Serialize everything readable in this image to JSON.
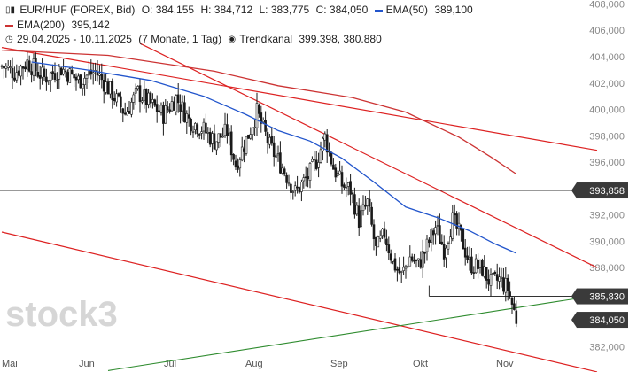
{
  "header": {
    "symbol": "EUR/HUF (FOREX, Bid)",
    "open": "O: 384,155",
    "high": "H: 384,712",
    "low": "L: 383,775",
    "close": "C: 384,050",
    "ema50_label": "EMA(50)",
    "ema50_value": "389,100",
    "ema200_label": "EMA(200)",
    "ema200_value": "395,142",
    "range": "29.04.2025 - 10.11.2025",
    "period": "(7 Monate, 1 Tag)",
    "channel_label": "Trendkanal",
    "channel_values": "399.398, 380.880"
  },
  "watermark": "stock3",
  "colors": {
    "candle": "#1a1a1a",
    "ema50": "#2255cc",
    "ema200": "#cc3333",
    "channel": "#dd2222",
    "support": "#2e8b2e",
    "level": "#333333",
    "label_bg": "#3a3a3a"
  },
  "chart_data": {
    "type": "candlestick",
    "x_axis": [
      "Mai",
      "Jun",
      "Jul",
      "Aug",
      "Sep",
      "Okt",
      "Nov"
    ],
    "y_ticks": [
      "382,000",
      "384,000",
      "386,000",
      "388,000",
      "390,000",
      "392,000",
      "394,000",
      "396,000",
      "398,000",
      "400,000",
      "402,000",
      "404,000",
      "406,000",
      "408,000"
    ],
    "ylim": [
      381.3,
      408.3
    ],
    "price_labels": [
      "393,858",
      "385,830",
      "384,050"
    ],
    "levels": [
      393.858,
      385.83
    ],
    "last_close": 384.05,
    "close_path": [
      [
        0,
        403.3
      ],
      [
        6,
        402.8
      ],
      [
        12,
        403.6
      ],
      [
        20,
        402.4
      ],
      [
        28,
        403.1
      ],
      [
        36,
        402.2
      ],
      [
        44,
        402.9
      ],
      [
        52,
        401.2
      ],
      [
        58,
        399.7
      ],
      [
        64,
        401.3
      ],
      [
        70,
        400.4
      ],
      [
        76,
        399.6
      ],
      [
        82,
        400.9
      ],
      [
        88,
        399.2
      ],
      [
        94,
        398.6
      ],
      [
        100,
        397.6
      ],
      [
        106,
        398.3
      ],
      [
        110,
        395.8
      ],
      [
        116,
        398.1
      ],
      [
        120,
        399.8
      ],
      [
        126,
        397.2
      ],
      [
        132,
        395.6
      ],
      [
        138,
        393.7
      ],
      [
        144,
        394.9
      ],
      [
        148,
        396.1
      ],
      [
        152,
        397.9
      ],
      [
        156,
        395.6
      ],
      [
        160,
        394.3
      ],
      [
        164,
        393.9
      ],
      [
        168,
        391.6
      ],
      [
        172,
        392.9
      ],
      [
        176,
        389.3
      ],
      [
        180,
        390.6
      ],
      [
        184,
        388.4
      ],
      [
        188,
        387.4
      ],
      [
        192,
        388.8
      ],
      [
        196,
        388.2
      ],
      [
        200,
        389.6
      ],
      [
        204,
        391.1
      ],
      [
        208,
        389.4
      ],
      [
        212,
        391.6
      ],
      [
        216,
        390.3
      ],
      [
        220,
        388.3
      ],
      [
        226,
        387.9
      ],
      [
        230,
        386.8
      ],
      [
        234,
        387.1
      ],
      [
        238,
        386.4
      ],
      [
        242,
        384.1
      ]
    ],
    "ema50_path": [
      [
        14,
        403.6
      ],
      [
        40,
        403.0
      ],
      [
        70,
        402.2
      ],
      [
        95,
        401.0
      ],
      [
        115,
        399.6
      ],
      [
        130,
        398.4
      ],
      [
        145,
        397.6
      ],
      [
        160,
        396.3
      ],
      [
        175,
        394.5
      ],
      [
        190,
        392.6
      ],
      [
        205,
        391.8
      ],
      [
        220,
        390.8
      ],
      [
        232,
        389.8
      ],
      [
        242,
        389.1
      ]
    ],
    "ema200_path": [
      [
        0,
        404.5
      ],
      [
        50,
        404.1
      ],
      [
        100,
        402.9
      ],
      [
        130,
        401.8
      ],
      [
        165,
        400.9
      ],
      [
        190,
        399.8
      ],
      [
        215,
        397.9
      ],
      [
        230,
        396.4
      ],
      [
        242,
        395.1
      ]
    ],
    "channel_upper": [
      [
        0,
        404.7
      ],
      [
        280,
        396.9
      ]
    ],
    "channel_lower": [
      [
        0,
        390.7
      ],
      [
        280,
        380.1
      ]
    ],
    "channel_mid": [
      [
        65,
        405.0
      ],
      [
        280,
        388.0
      ]
    ],
    "support_line": [
      [
        50,
        380.2
      ],
      [
        280,
        385.9
      ]
    ]
  }
}
